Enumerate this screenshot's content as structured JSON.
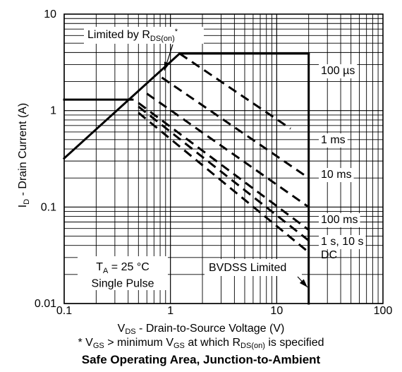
{
  "chart_data": {
    "type": "line",
    "title": "Safe Operating Area, Junction-to-Ambient",
    "xlabel": {
      "main": "V",
      "sub": "DS",
      "rest": " - Drain-to-Source Voltage (V)"
    },
    "ylabel": {
      "main": "I",
      "sub": "D",
      "rest": " - Drain Current (A)"
    },
    "footnote": {
      "p1": "* V",
      "s1": "GS",
      "p2": " > minimum V",
      "s2": "GS",
      "p3": " at which R",
      "s3": "DS(on)",
      "p4": " is specified"
    },
    "x_scale": "log",
    "y_scale": "log",
    "xlim": [
      0.1,
      100
    ],
    "ylim": [
      0.01,
      10
    ],
    "x_ticks": [
      {
        "v": 0.1,
        "label": "0.1"
      },
      {
        "v": 1,
        "label": "1"
      },
      {
        "v": 10,
        "label": "10"
      },
      {
        "v": 100,
        "label": "100"
      }
    ],
    "y_ticks": [
      {
        "v": 10,
        "label": "10"
      },
      {
        "v": 1,
        "label": "1"
      },
      {
        "v": 0.1,
        "label": "0.1"
      },
      {
        "v": 0.01,
        "label": "0.01"
      }
    ],
    "grid": true,
    "solid_lines": [
      {
        "name": "rds-on-limit",
        "x": [
          0.1,
          1.22
        ],
        "y": [
          0.32,
          3.9
        ]
      },
      {
        "name": "current-limit",
        "x": [
          1.22,
          20
        ],
        "y": [
          3.9,
          3.9
        ]
      },
      {
        "name": "bvdss-limit",
        "x": [
          20,
          20
        ],
        "y": [
          3.9,
          0.01
        ]
      },
      {
        "name": "single-pulse-current",
        "x": [
          0.1,
          0.44
        ],
        "y": [
          1.3,
          1.3
        ]
      }
    ],
    "series": [
      {
        "name": "100 µs",
        "x": [
          1.22,
          13.5
        ],
        "y": [
          3.9,
          0.65
        ]
      },
      {
        "name": "1 ms",
        "x": [
          0.83,
          20
        ],
        "y": [
          2.2,
          0.2
        ]
      },
      {
        "name": "10 ms",
        "x": [
          0.6,
          20
        ],
        "y": [
          1.5,
          0.1
        ]
      },
      {
        "name": "100 ms",
        "x": [
          0.5,
          20
        ],
        "y": [
          1.2,
          0.058
        ]
      },
      {
        "name": "1 s, 10 s",
        "x": [
          0.5,
          20
        ],
        "y": [
          1.1,
          0.045
        ]
      },
      {
        "name": "DC",
        "x": [
          0.5,
          20
        ],
        "y": [
          0.95,
          0.034
        ]
      }
    ],
    "annotations": {
      "rds_on": {
        "main": "Limited by R",
        "sub": "DS(on)",
        "sup": "*"
      },
      "ta": {
        "main": "T",
        "sub": "A",
        "rest": " = 25 °C"
      },
      "single_pulse": "Single Pulse",
      "bvdss": "BVDSS Limited"
    }
  }
}
